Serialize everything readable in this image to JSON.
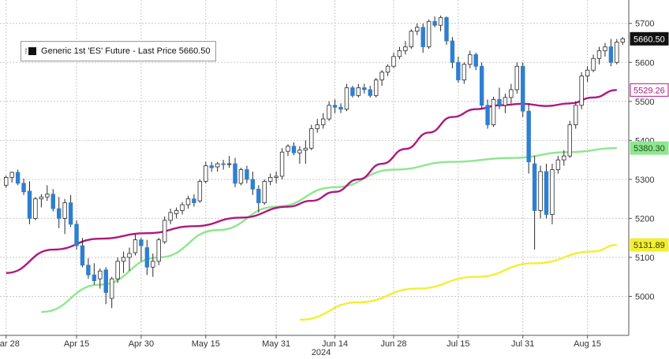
{
  "legend": {
    "label": "Generic 1st 'ES' Future - Last Price 5660.50"
  },
  "colors": {
    "up": "#ffffff",
    "down": "#2f7fd0",
    "wick": "#2a2a2a",
    "candle_border": "#2a2a2a",
    "ma50": "#b0177e",
    "ma100": "#8ee68e",
    "ma200": "#f2ef33",
    "grid": "#c9c9c9",
    "last_price_tag": "#111111"
  },
  "chart_data": {
    "type": "candlestick",
    "title": "",
    "xlabel": "2024",
    "ylabel": "",
    "ylim": [
      4900,
      5760
    ],
    "y_ticks": [
      5000,
      5100,
      5200,
      5300,
      5400,
      5500,
      5600,
      5700
    ],
    "x_tick_labels": [
      "Mar 28",
      "Apr 15",
      "Apr 30",
      "May 15",
      "May 31",
      "Jun 14",
      "Jun 28",
      "Jul 15",
      "Jul 31",
      "Aug 15"
    ],
    "x_axis_year": "2024",
    "grid": true,
    "legend_position": "top-left",
    "price_tags": [
      {
        "label": "5660.50",
        "value": 5660.5,
        "series": "last"
      },
      {
        "label": "5529.26",
        "value": 5529.26,
        "series": "ma50"
      },
      {
        "label": "5380.30",
        "value": 5380.3,
        "series": "ma100"
      },
      {
        "label": "5131.89",
        "value": 5131.89,
        "series": "ma200"
      }
    ],
    "candles": [
      [
        5285,
        5310,
        5278,
        5305
      ],
      [
        5305,
        5320,
        5292,
        5318
      ],
      [
        5318,
        5325,
        5285,
        5290
      ],
      [
        5290,
        5302,
        5260,
        5268
      ],
      [
        5270,
        5295,
        5185,
        5200
      ],
      [
        5200,
        5255,
        5195,
        5250
      ],
      [
        5250,
        5262,
        5228,
        5255
      ],
      [
        5255,
        5285,
        5245,
        5262
      ],
      [
        5262,
        5275,
        5218,
        5225
      ],
      [
        5225,
        5255,
        5175,
        5200
      ],
      [
        5200,
        5250,
        5160,
        5240
      ],
      [
        5240,
        5260,
        5178,
        5185
      ],
      [
        5185,
        5195,
        5120,
        5130
      ],
      [
        5130,
        5150,
        5075,
        5080
      ],
      [
        5080,
        5098,
        5045,
        5055
      ],
      [
        5055,
        5085,
        5030,
        5040
      ],
      [
        5045,
        5072,
        5020,
        5065
      ],
      [
        5068,
        5075,
        4980,
        5010
      ],
      [
        4995,
        5050,
        4970,
        5045
      ],
      [
        5045,
        5100,
        5035,
        5090
      ],
      [
        5090,
        5115,
        5060,
        5100
      ],
      [
        5100,
        5125,
        5065,
        5110
      ],
      [
        5112,
        5160,
        5105,
        5145
      ],
      [
        5145,
        5150,
        5090,
        5130
      ],
      [
        5125,
        5145,
        5055,
        5075
      ],
      [
        5075,
        5110,
        5050,
        5090
      ],
      [
        5090,
        5150,
        5080,
        5145
      ],
      [
        5140,
        5205,
        5135,
        5195
      ],
      [
        5195,
        5225,
        5185,
        5215
      ],
      [
        5212,
        5228,
        5200,
        5220
      ],
      [
        5220,
        5242,
        5210,
        5235
      ],
      [
        5235,
        5258,
        5225,
        5250
      ],
      [
        5250,
        5262,
        5230,
        5240
      ],
      [
        5245,
        5300,
        5240,
        5295
      ],
      [
        5295,
        5345,
        5290,
        5335
      ],
      [
        5335,
        5345,
        5320,
        5330
      ],
      [
        5332,
        5345,
        5320,
        5340
      ],
      [
        5340,
        5350,
        5325,
        5338
      ],
      [
        5338,
        5360,
        5330,
        5340
      ],
      [
        5340,
        5355,
        5280,
        5290
      ],
      [
        5290,
        5330,
        5285,
        5325
      ],
      [
        5325,
        5335,
        5290,
        5300
      ],
      [
        5300,
        5320,
        5260,
        5275
      ],
      [
        5275,
        5285,
        5215,
        5240
      ],
      [
        5240,
        5300,
        5235,
        5295
      ],
      [
        5295,
        5315,
        5285,
        5305
      ],
      [
        5305,
        5320,
        5290,
        5308
      ],
      [
        5308,
        5380,
        5300,
        5370
      ],
      [
        5372,
        5390,
        5360,
        5385
      ],
      [
        5385,
        5395,
        5362,
        5368
      ],
      [
        5368,
        5385,
        5340,
        5375
      ],
      [
        5375,
        5400,
        5340,
        5380
      ],
      [
        5380,
        5440,
        5375,
        5430
      ],
      [
        5430,
        5455,
        5420,
        5440
      ],
      [
        5440,
        5470,
        5430,
        5455
      ],
      [
        5455,
        5500,
        5450,
        5490
      ],
      [
        5490,
        5505,
        5470,
        5485
      ],
      [
        5485,
        5495,
        5470,
        5480
      ],
      [
        5480,
        5545,
        5475,
        5535
      ],
      [
        5535,
        5540,
        5510,
        5515
      ],
      [
        5515,
        5545,
        5510,
        5535
      ],
      [
        5535,
        5545,
        5520,
        5530
      ],
      [
        5530,
        5540,
        5510,
        5515
      ],
      [
        5515,
        5560,
        5510,
        5555
      ],
      [
        5555,
        5580,
        5540,
        5575
      ],
      [
        5575,
        5595,
        5565,
        5590
      ],
      [
        5590,
        5625,
        5585,
        5615
      ],
      [
        5615,
        5640,
        5608,
        5630
      ],
      [
        5630,
        5655,
        5620,
        5640
      ],
      [
        5640,
        5685,
        5635,
        5680
      ],
      [
        5680,
        5700,
        5670,
        5690
      ],
      [
        5690,
        5700,
        5625,
        5640
      ],
      [
        5640,
        5710,
        5635,
        5705
      ],
      [
        5705,
        5718,
        5690,
        5695
      ],
      [
        5695,
        5720,
        5680,
        5715
      ],
      [
        5715,
        5718,
        5645,
        5655
      ],
      [
        5655,
        5665,
        5585,
        5600
      ],
      [
        5600,
        5615,
        5548,
        5555
      ],
      [
        5555,
        5600,
        5545,
        5595
      ],
      [
        5595,
        5630,
        5585,
        5620
      ],
      [
        5620,
        5625,
        5580,
        5590
      ],
      [
        5590,
        5600,
        5480,
        5490
      ],
      [
        5490,
        5505,
        5430,
        5440
      ],
      [
        5440,
        5512,
        5435,
        5505
      ],
      [
        5505,
        5535,
        5480,
        5490
      ],
      [
        5490,
        5520,
        5470,
        5510
      ],
      [
        5510,
        5545,
        5495,
        5530
      ],
      [
        5530,
        5600,
        5520,
        5590
      ],
      [
        5590,
        5600,
        5460,
        5475
      ],
      [
        5475,
        5495,
        5315,
        5345
      ],
      [
        5340,
        5360,
        5120,
        5220
      ],
      [
        5220,
        5335,
        5200,
        5320
      ],
      [
        5320,
        5340,
        5200,
        5210
      ],
      [
        5210,
        5340,
        5185,
        5325
      ],
      [
        5325,
        5360,
        5315,
        5350
      ],
      [
        5350,
        5375,
        5335,
        5360
      ],
      [
        5360,
        5450,
        5355,
        5440
      ],
      [
        5440,
        5500,
        5430,
        5490
      ],
      [
        5490,
        5575,
        5480,
        5565
      ],
      [
        5565,
        5590,
        5550,
        5580
      ],
      [
        5580,
        5620,
        5575,
        5610
      ],
      [
        5610,
        5640,
        5595,
        5630
      ],
      [
        5630,
        5650,
        5615,
        5640
      ],
      [
        5640,
        5660,
        5590,
        5600
      ],
      [
        5600,
        5660,
        5595,
        5652
      ],
      [
        5652,
        5665,
        5645,
        5660.5
      ]
    ],
    "ma50_points": [
      [
        0,
        5060
      ],
      [
        8,
        5120
      ],
      [
        16,
        5148
      ],
      [
        24,
        5162
      ],
      [
        32,
        5180
      ],
      [
        40,
        5202
      ],
      [
        48,
        5230
      ],
      [
        52,
        5245
      ],
      [
        56,
        5268
      ],
      [
        60,
        5300
      ],
      [
        64,
        5340
      ],
      [
        68,
        5378
      ],
      [
        72,
        5420
      ],
      [
        76,
        5460
      ],
      [
        80,
        5480
      ],
      [
        84,
        5490
      ],
      [
        88,
        5494
      ],
      [
        92,
        5488
      ],
      [
        96,
        5495
      ],
      [
        100,
        5510
      ],
      [
        104,
        5529.26
      ]
    ],
    "ma100_points": [
      [
        6,
        4960
      ],
      [
        16,
        5030
      ],
      [
        26,
        5100
      ],
      [
        36,
        5170
      ],
      [
        46,
        5230
      ],
      [
        56,
        5280
      ],
      [
        66,
        5325
      ],
      [
        76,
        5345
      ],
      [
        86,
        5355
      ],
      [
        96,
        5370
      ],
      [
        104,
        5380.3
      ]
    ],
    "ma200_points": [
      [
        50,
        4940
      ],
      [
        60,
        4985
      ],
      [
        70,
        5020
      ],
      [
        80,
        5050
      ],
      [
        90,
        5085
      ],
      [
        100,
        5115
      ],
      [
        104,
        5131.89
      ]
    ]
  }
}
